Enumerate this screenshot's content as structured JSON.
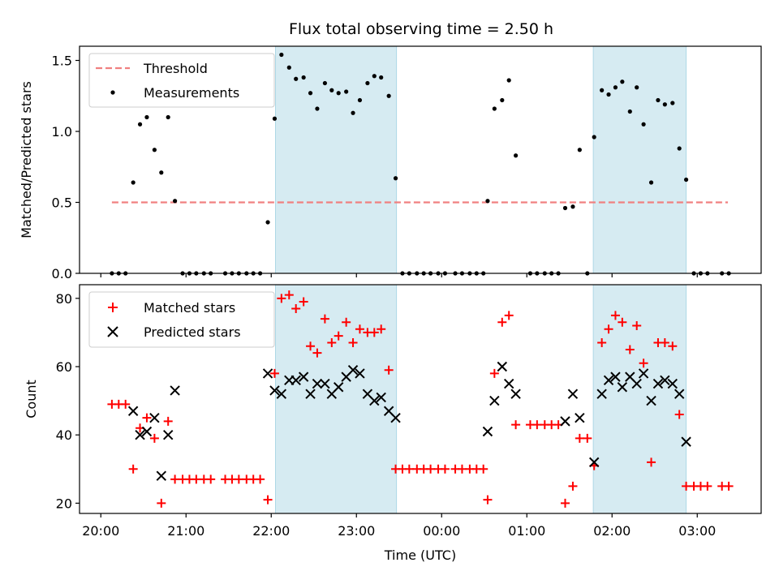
{
  "chart_data": [
    {
      "type": "scatter",
      "title": "Flux total observing time = 2.50 h",
      "xlabel": "",
      "ylabel": "Matched/Predicted stars",
      "ylim": [
        0,
        1.6
      ],
      "yticks": [
        "0.0",
        "0.5",
        "1.0",
        "1.5"
      ],
      "x_unit": "hours after 20:00 UTC",
      "xlim": [
        -0.25,
        7.75
      ],
      "grid": false,
      "legend_position": "top-left",
      "shaded_intervals": [
        [
          2.05,
          3.47
        ],
        [
          5.78,
          6.87
        ]
      ],
      "series": [
        {
          "name": "Threshold",
          "style": "dashed-line",
          "color": "#f08080",
          "x": [
            0.13,
            7.36
          ],
          "y": [
            0.5,
            0.5
          ]
        },
        {
          "name": "Measurements",
          "style": "dots",
          "color": "#000000",
          "points": [
            [
              0.13,
              0
            ],
            [
              0.21,
              0
            ],
            [
              0.29,
              0
            ],
            [
              0.38,
              0.64
            ],
            [
              0.46,
              1.05
            ],
            [
              0.54,
              1.1
            ],
            [
              0.63,
              0.87
            ],
            [
              0.71,
              0.71
            ],
            [
              0.79,
              1.1
            ],
            [
              0.87,
              0.51
            ],
            [
              0.96,
              0
            ],
            [
              1.04,
              0
            ],
            [
              1.12,
              0
            ],
            [
              1.21,
              0
            ],
            [
              1.29,
              0
            ],
            [
              1.46,
              0
            ],
            [
              1.54,
              0
            ],
            [
              1.62,
              0
            ],
            [
              1.71,
              0
            ],
            [
              1.79,
              0
            ],
            [
              1.87,
              0
            ],
            [
              1.96,
              0.36
            ],
            [
              2.04,
              1.09
            ],
            [
              2.12,
              1.54
            ],
            [
              2.21,
              1.45
            ],
            [
              2.29,
              1.37
            ],
            [
              2.38,
              1.38
            ],
            [
              2.46,
              1.27
            ],
            [
              2.54,
              1.16
            ],
            [
              2.63,
              1.34
            ],
            [
              2.71,
              1.29
            ],
            [
              2.79,
              1.27
            ],
            [
              2.88,
              1.28
            ],
            [
              2.96,
              1.13
            ],
            [
              3.04,
              1.22
            ],
            [
              3.13,
              1.34
            ],
            [
              3.21,
              1.39
            ],
            [
              3.29,
              1.38
            ],
            [
              3.38,
              1.25
            ],
            [
              3.46,
              0.67
            ],
            [
              3.54,
              0
            ],
            [
              3.62,
              0
            ],
            [
              3.71,
              0
            ],
            [
              3.79,
              0
            ],
            [
              3.87,
              0
            ],
            [
              3.96,
              0
            ],
            [
              4.04,
              0
            ],
            [
              4.16,
              0
            ],
            [
              4.24,
              0
            ],
            [
              4.33,
              0
            ],
            [
              4.41,
              0
            ],
            [
              4.49,
              0
            ],
            [
              4.54,
              0.51
            ],
            [
              4.62,
              1.16
            ],
            [
              4.71,
              1.22
            ],
            [
              4.79,
              1.36
            ],
            [
              4.87,
              0.83
            ],
            [
              5.04,
              0
            ],
            [
              5.12,
              0
            ],
            [
              5.21,
              0
            ],
            [
              5.29,
              0
            ],
            [
              5.37,
              0
            ],
            [
              5.45,
              0.46
            ],
            [
              5.54,
              0.47
            ],
            [
              5.62,
              0.87
            ],
            [
              5.71,
              0
            ],
            [
              5.79,
              0.96
            ],
            [
              5.88,
              1.29
            ],
            [
              5.96,
              1.26
            ],
            [
              6.04,
              1.31
            ],
            [
              6.12,
              1.35
            ],
            [
              6.21,
              1.14
            ],
            [
              6.29,
              1.31
            ],
            [
              6.37,
              1.05
            ],
            [
              6.46,
              0.64
            ],
            [
              6.54,
              1.22
            ],
            [
              6.62,
              1.19
            ],
            [
              6.71,
              1.2
            ],
            [
              6.79,
              0.88
            ],
            [
              6.87,
              0.66
            ],
            [
              6.96,
              0
            ],
            [
              7.04,
              0
            ],
            [
              7.12,
              0
            ],
            [
              7.29,
              0
            ],
            [
              7.37,
              0
            ]
          ]
        }
      ]
    },
    {
      "type": "scatter",
      "title": "",
      "xlabel": "Time (UTC)",
      "ylabel": "Count",
      "ylim": [
        17,
        84
      ],
      "yticks": [
        "20",
        "40",
        "60",
        "80"
      ],
      "xticks": [
        "20:00",
        "21:00",
        "22:00",
        "23:00",
        "00:00",
        "01:00",
        "02:00",
        "03:00"
      ],
      "x_unit": "hours after 20:00 UTC",
      "xlim": [
        -0.25,
        7.75
      ],
      "grid": false,
      "legend_position": "top-left",
      "shaded_intervals": [
        [
          2.05,
          3.47
        ],
        [
          5.78,
          6.87
        ]
      ],
      "series": [
        {
          "name": "Matched stars",
          "marker": "plus",
          "color": "#ff0000",
          "points": [
            [
              0.13,
              49
            ],
            [
              0.21,
              49
            ],
            [
              0.29,
              49
            ],
            [
              0.38,
              30
            ],
            [
              0.46,
              42
            ],
            [
              0.54,
              45
            ],
            [
              0.63,
              39
            ],
            [
              0.71,
              20
            ],
            [
              0.79,
              44
            ],
            [
              0.87,
              27
            ],
            [
              0.96,
              27
            ],
            [
              1.04,
              27
            ],
            [
              1.12,
              27
            ],
            [
              1.21,
              27
            ],
            [
              1.29,
              27
            ],
            [
              1.46,
              27
            ],
            [
              1.54,
              27
            ],
            [
              1.62,
              27
            ],
            [
              1.71,
              27
            ],
            [
              1.79,
              27
            ],
            [
              1.87,
              27
            ],
            [
              1.96,
              21
            ],
            [
              2.04,
              58
            ],
            [
              2.12,
              80
            ],
            [
              2.21,
              81
            ],
            [
              2.29,
              77
            ],
            [
              2.38,
              79
            ],
            [
              2.46,
              66
            ],
            [
              2.54,
              64
            ],
            [
              2.63,
              74
            ],
            [
              2.71,
              67
            ],
            [
              2.79,
              69
            ],
            [
              2.88,
              73
            ],
            [
              2.96,
              67
            ],
            [
              3.04,
              71
            ],
            [
              3.13,
              70
            ],
            [
              3.21,
              70
            ],
            [
              3.29,
              71
            ],
            [
              3.38,
              59
            ],
            [
              3.46,
              30
            ],
            [
              3.54,
              30
            ],
            [
              3.62,
              30
            ],
            [
              3.71,
              30
            ],
            [
              3.79,
              30
            ],
            [
              3.87,
              30
            ],
            [
              3.96,
              30
            ],
            [
              4.04,
              30
            ],
            [
              4.16,
              30
            ],
            [
              4.24,
              30
            ],
            [
              4.33,
              30
            ],
            [
              4.41,
              30
            ],
            [
              4.49,
              30
            ],
            [
              4.54,
              21
            ],
            [
              4.62,
              58
            ],
            [
              4.71,
              73
            ],
            [
              4.79,
              75
            ],
            [
              4.87,
              43
            ],
            [
              5.04,
              43
            ],
            [
              5.12,
              43
            ],
            [
              5.21,
              43
            ],
            [
              5.29,
              43
            ],
            [
              5.37,
              43
            ],
            [
              5.45,
              20
            ],
            [
              5.54,
              25
            ],
            [
              5.62,
              39
            ],
            [
              5.71,
              39
            ],
            [
              5.79,
              31
            ],
            [
              5.88,
              67
            ],
            [
              5.96,
              71
            ],
            [
              6.04,
              75
            ],
            [
              6.12,
              73
            ],
            [
              6.21,
              65
            ],
            [
              6.29,
              72
            ],
            [
              6.37,
              61
            ],
            [
              6.46,
              32
            ],
            [
              6.54,
              67
            ],
            [
              6.62,
              67
            ],
            [
              6.71,
              66
            ],
            [
              6.79,
              46
            ],
            [
              6.87,
              25
            ],
            [
              6.96,
              25
            ],
            [
              7.04,
              25
            ],
            [
              7.12,
              25
            ],
            [
              7.29,
              25
            ],
            [
              7.37,
              25
            ]
          ]
        },
        {
          "name": "Predicted stars",
          "marker": "x",
          "color": "#000000",
          "points": [
            [
              0.38,
              47
            ],
            [
              0.46,
              40
            ],
            [
              0.54,
              41
            ],
            [
              0.63,
              45
            ],
            [
              0.71,
              28
            ],
            [
              0.79,
              40
            ],
            [
              0.87,
              53
            ],
            [
              1.96,
              58
            ],
            [
              2.04,
              53
            ],
            [
              2.12,
              52
            ],
            [
              2.21,
              56
            ],
            [
              2.29,
              56
            ],
            [
              2.38,
              57
            ],
            [
              2.46,
              52
            ],
            [
              2.54,
              55
            ],
            [
              2.63,
              55
            ],
            [
              2.71,
              52
            ],
            [
              2.79,
              54
            ],
            [
              2.88,
              57
            ],
            [
              2.96,
              59
            ],
            [
              3.04,
              58
            ],
            [
              3.13,
              52
            ],
            [
              3.21,
              50
            ],
            [
              3.29,
              51
            ],
            [
              3.38,
              47
            ],
            [
              3.46,
              45
            ],
            [
              4.54,
              41
            ],
            [
              4.62,
              50
            ],
            [
              4.71,
              60
            ],
            [
              4.79,
              55
            ],
            [
              4.87,
              52
            ],
            [
              5.45,
              44
            ],
            [
              5.54,
              52
            ],
            [
              5.62,
              45
            ],
            [
              5.79,
              32
            ],
            [
              5.88,
              52
            ],
            [
              5.96,
              56
            ],
            [
              6.04,
              57
            ],
            [
              6.12,
              54
            ],
            [
              6.21,
              57
            ],
            [
              6.29,
              55
            ],
            [
              6.37,
              58
            ],
            [
              6.46,
              50
            ],
            [
              6.54,
              55
            ],
            [
              6.62,
              56
            ],
            [
              6.71,
              55
            ],
            [
              6.79,
              52
            ],
            [
              6.87,
              38
            ]
          ]
        }
      ]
    }
  ]
}
